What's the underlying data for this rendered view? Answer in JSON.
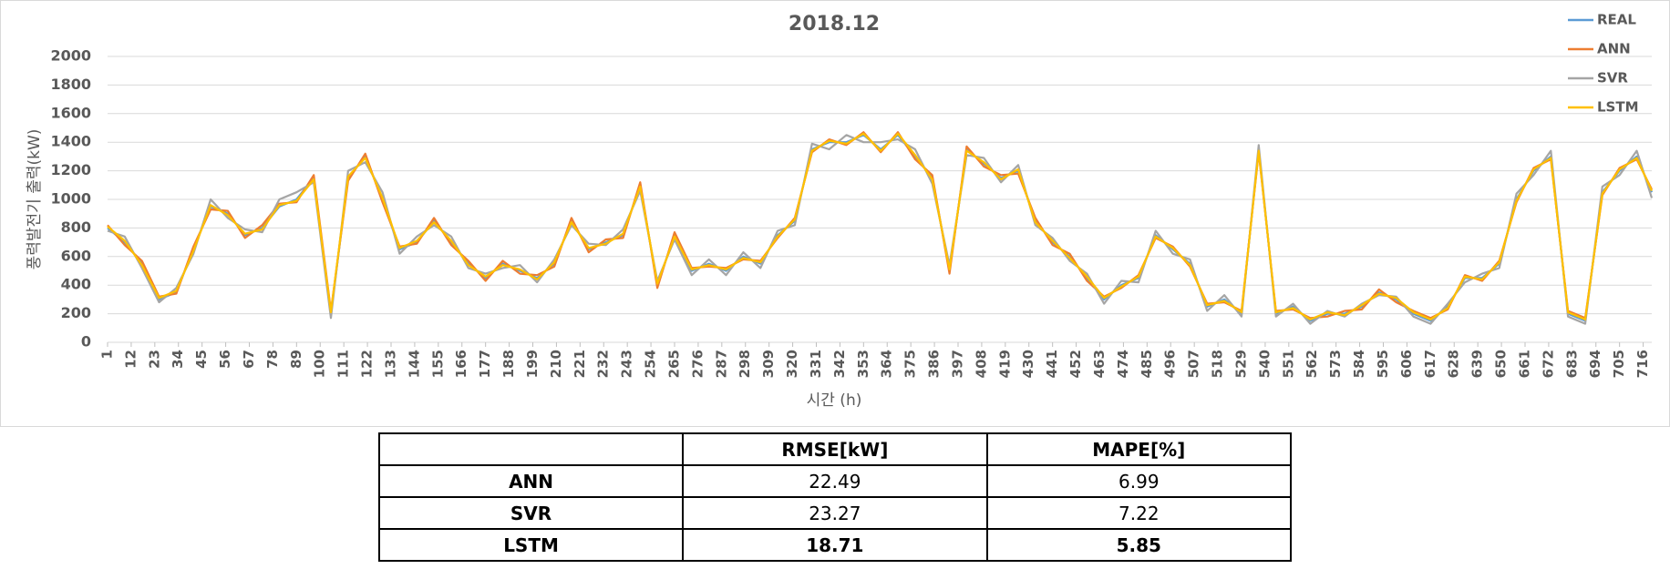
{
  "chart_data": {
    "type": "line",
    "title": "2018.12",
    "x_label": "시간 (h)",
    "y_label": "풍력발전기 출력(kW)",
    "x": [
      1,
      9,
      17,
      25,
      33,
      41,
      49,
      57,
      65,
      73,
      81,
      89,
      97,
      105,
      113,
      121,
      129,
      137,
      145,
      153,
      161,
      169,
      177,
      185,
      193,
      201,
      209,
      217,
      225,
      233,
      241,
      249,
      257,
      265,
      273,
      281,
      289,
      297,
      305,
      313,
      321,
      329,
      337,
      345,
      353,
      361,
      369,
      377,
      385,
      393,
      401,
      409,
      417,
      425,
      433,
      441,
      449,
      457,
      465,
      473,
      481,
      489,
      497,
      505,
      513,
      521,
      529,
      537,
      545,
      553,
      561,
      569,
      577,
      585,
      593,
      601,
      609,
      617,
      625,
      633,
      641,
      649,
      657,
      665,
      673,
      681,
      689,
      697,
      705,
      713,
      720
    ],
    "series": [
      {
        "name": "REAL",
        "color": "#5b9bd5",
        "values": [
          800,
          700,
          550,
          300,
          350,
          650,
          950,
          900,
          750,
          800,
          950,
          1000,
          1150,
          200,
          1150,
          1300,
          1000,
          650,
          700,
          850,
          700,
          550,
          450,
          550,
          500,
          450,
          550,
          850,
          650,
          700,
          750,
          1100,
          400,
          750,
          500,
          550,
          500,
          600,
          550,
          750,
          850,
          1350,
          1400,
          1400,
          1450,
          1350,
          1450,
          1300,
          1150,
          500,
          1350,
          1250,
          1150,
          1200,
          850,
          700,
          600,
          450,
          300,
          400,
          450,
          750,
          650,
          550,
          250,
          300,
          200,
          1350,
          200,
          250,
          150,
          200,
          200,
          250,
          350,
          300,
          200,
          150,
          250,
          450,
          450,
          550,
          1000,
          1200,
          1300,
          200,
          150,
          1050,
          1200,
          1300,
          1050
        ]
      },
      {
        "name": "ANN",
        "color": "#ed7d31",
        "values": [
          820,
          680,
          570,
          320,
          340,
          670,
          930,
          920,
          730,
          820,
          970,
          980,
          1170,
          220,
          1130,
          1320,
          980,
          670,
          690,
          870,
          680,
          570,
          430,
          570,
          480,
          470,
          530,
          870,
          630,
          720,
          730,
          1120,
          380,
          770,
          520,
          530,
          520,
          580,
          570,
          730,
          870,
          1330,
          1420,
          1380,
          1470,
          1330,
          1470,
          1280,
          1170,
          480,
          1370,
          1230,
          1170,
          1180,
          870,
          680,
          620,
          430,
          320,
          380,
          470,
          730,
          670,
          530,
          270,
          280,
          220,
          1330,
          220,
          230,
          170,
          180,
          220,
          230,
          370,
          280,
          220,
          170,
          230,
          470,
          430,
          570,
          980,
          1220,
          1280,
          220,
          170,
          1030,
          1220,
          1280,
          1070
        ]
      },
      {
        "name": "SVR",
        "color": "#a5a5a5",
        "values": [
          780,
          740,
          520,
          280,
          380,
          620,
          1000,
          870,
          790,
          770,
          1000,
          1050,
          1120,
          170,
          1200,
          1260,
          1050,
          620,
          740,
          820,
          740,
          520,
          480,
          520,
          540,
          420,
          580,
          820,
          690,
          680,
          790,
          1060,
          430,
          720,
          470,
          580,
          470,
          630,
          520,
          780,
          820,
          1390,
          1350,
          1450,
          1400,
          1400,
          1420,
          1350,
          1110,
          540,
          1310,
          1290,
          1120,
          1240,
          820,
          730,
          570,
          480,
          270,
          430,
          420,
          780,
          620,
          580,
          220,
          330,
          180,
          1380,
          180,
          270,
          130,
          220,
          180,
          270,
          330,
          320,
          180,
          130,
          270,
          420,
          480,
          520,
          1040,
          1170,
          1340,
          180,
          130,
          1090,
          1170,
          1340,
          1010
        ]
      },
      {
        "name": "LSTM",
        "color": "#ffc000",
        "values": [
          810,
          710,
          540,
          310,
          360,
          640,
          960,
          890,
          760,
          790,
          960,
          990,
          1140,
          210,
          1160,
          1290,
          1010,
          660,
          710,
          840,
          710,
          540,
          460,
          540,
          510,
          440,
          560,
          840,
          660,
          690,
          760,
          1090,
          410,
          740,
          510,
          540,
          510,
          590,
          560,
          740,
          860,
          1340,
          1410,
          1390,
          1460,
          1340,
          1460,
          1310,
          1140,
          510,
          1340,
          1260,
          1140,
          1210,
          840,
          710,
          590,
          460,
          310,
          390,
          460,
          740,
          660,
          540,
          260,
          290,
          210,
          1340,
          210,
          240,
          160,
          210,
          190,
          260,
          340,
          310,
          210,
          160,
          240,
          460,
          440,
          560,
          990,
          1210,
          1290,
          210,
          160,
          1040,
          1210,
          1290,
          1060
        ]
      }
    ],
    "xlim": [
      1,
      720
    ],
    "xticks": [
      1,
      12,
      23,
      34,
      45,
      56,
      67,
      78,
      89,
      100,
      111,
      122,
      133,
      144,
      155,
      166,
      177,
      188,
      199,
      210,
      221,
      232,
      243,
      254,
      265,
      276,
      287,
      298,
      309,
      320,
      331,
      342,
      353,
      364,
      375,
      386,
      397,
      408,
      419,
      430,
      441,
      452,
      463,
      474,
      485,
      496,
      507,
      518,
      529,
      540,
      551,
      562,
      573,
      584,
      595,
      606,
      617,
      628,
      639,
      650,
      661,
      672,
      683,
      694,
      705,
      716
    ],
    "ylim": [
      0,
      2000
    ],
    "yticks": [
      0,
      200,
      400,
      600,
      800,
      1000,
      1200,
      1400,
      1600,
      1800,
      2000
    ],
    "grid": true,
    "legend": "top-right"
  },
  "table": {
    "columns": [
      "RMSE[kW]",
      "MAPE[%]"
    ],
    "rows": [
      [
        "ANN",
        "22.49",
        "6.99"
      ],
      [
        "SVR",
        "23.27",
        "7.22"
      ],
      [
        "LSTM",
        "18.71",
        "5.85"
      ]
    ]
  }
}
